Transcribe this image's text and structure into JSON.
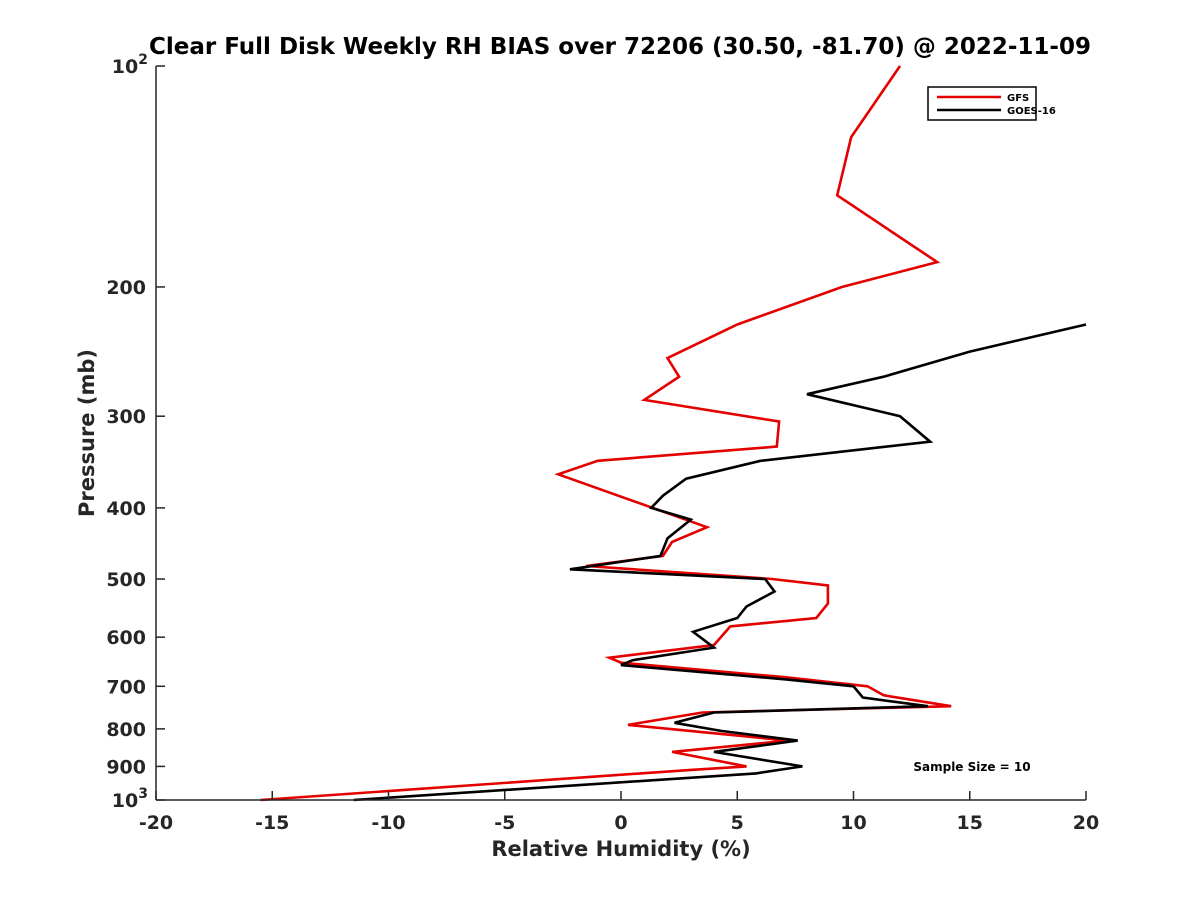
{
  "chart_data": {
    "type": "line",
    "title": "Clear Full Disk Weekly RH BIAS over 72206 (30.50, -81.70) @ 2022-11-09",
    "xlabel": "Relative Humidity (%)",
    "ylabel": "Pressure (mb)",
    "xlim": [
      -20,
      20
    ],
    "ylim": [
      100,
      1000
    ],
    "y_scale": "log",
    "y_reversed": true,
    "grid": false,
    "x_ticks": [
      -20,
      -15,
      -10,
      -5,
      0,
      5,
      10,
      15,
      20
    ],
    "y_ticks": [
      {
        "value": 100,
        "label": "10",
        "sup": "2"
      },
      {
        "value": 200,
        "label": "200",
        "sup": ""
      },
      {
        "value": 300,
        "label": "300",
        "sup": ""
      },
      {
        "value": 400,
        "label": "400",
        "sup": ""
      },
      {
        "value": 500,
        "label": "500",
        "sup": ""
      },
      {
        "value": 600,
        "label": "600",
        "sup": ""
      },
      {
        "value": 700,
        "label": "700",
        "sup": ""
      },
      {
        "value": 800,
        "label": "800",
        "sup": ""
      },
      {
        "value": 900,
        "label": "900",
        "sup": ""
      },
      {
        "value": 1000,
        "label": "10",
        "sup": "3"
      }
    ],
    "legend_position": "top-right",
    "series": [
      {
        "name": "GFS",
        "color": "#e50000",
        "points": [
          {
            "x": 12.0,
            "y": 100
          },
          {
            "x": 9.9,
            "y": 125
          },
          {
            "x": 9.3,
            "y": 150
          },
          {
            "x": 13.6,
            "y": 185
          },
          {
            "x": 9.5,
            "y": 200
          },
          {
            "x": 5.0,
            "y": 225
          },
          {
            "x": 2.0,
            "y": 250
          },
          {
            "x": 2.5,
            "y": 265
          },
          {
            "x": 1.0,
            "y": 285
          },
          {
            "x": 6.8,
            "y": 305
          },
          {
            "x": 6.7,
            "y": 330
          },
          {
            "x": -1.0,
            "y": 345
          },
          {
            "x": -2.7,
            "y": 360
          },
          {
            "x": 3.7,
            "y": 425
          },
          {
            "x": 2.2,
            "y": 445
          },
          {
            "x": 1.8,
            "y": 465
          },
          {
            "x": -1.5,
            "y": 480
          },
          {
            "x": 6.5,
            "y": 500
          },
          {
            "x": 8.9,
            "y": 510
          },
          {
            "x": 8.9,
            "y": 540
          },
          {
            "x": 8.4,
            "y": 565
          },
          {
            "x": 4.7,
            "y": 580
          },
          {
            "x": 4.0,
            "y": 615
          },
          {
            "x": -0.5,
            "y": 640
          },
          {
            "x": 0.0,
            "y": 650
          },
          {
            "x": 7.0,
            "y": 680
          },
          {
            "x": 10.6,
            "y": 700
          },
          {
            "x": 11.3,
            "y": 720
          },
          {
            "x": 14.2,
            "y": 745
          },
          {
            "x": 3.5,
            "y": 760
          },
          {
            "x": 0.3,
            "y": 790
          },
          {
            "x": 7.2,
            "y": 830
          },
          {
            "x": 2.2,
            "y": 860
          },
          {
            "x": 5.4,
            "y": 900
          },
          {
            "x": 3.0,
            "y": 910
          },
          {
            "x": -15.5,
            "y": 1000
          }
        ]
      },
      {
        "name": "GOES-16",
        "color": "#000000",
        "points": [
          {
            "x": 20.0,
            "y": 225
          },
          {
            "x": 15.0,
            "y": 245
          },
          {
            "x": 11.3,
            "y": 265
          },
          {
            "x": 8.0,
            "y": 280
          },
          {
            "x": 12.0,
            "y": 300
          },
          {
            "x": 13.3,
            "y": 325
          },
          {
            "x": 6.0,
            "y": 345
          },
          {
            "x": 2.8,
            "y": 365
          },
          {
            "x": 1.8,
            "y": 385
          },
          {
            "x": 1.3,
            "y": 400
          },
          {
            "x": 3.0,
            "y": 415
          },
          {
            "x": 2.0,
            "y": 440
          },
          {
            "x": 1.7,
            "y": 465
          },
          {
            "x": -2.2,
            "y": 485
          },
          {
            "x": 6.2,
            "y": 500
          },
          {
            "x": 6.6,
            "y": 520
          },
          {
            "x": 5.4,
            "y": 545
          },
          {
            "x": 5.0,
            "y": 565
          },
          {
            "x": 3.1,
            "y": 590
          },
          {
            "x": 4.0,
            "y": 620
          },
          {
            "x": 0.5,
            "y": 645
          },
          {
            "x": 0.0,
            "y": 655
          },
          {
            "x": 7.1,
            "y": 685
          },
          {
            "x": 10.0,
            "y": 700
          },
          {
            "x": 10.4,
            "y": 725
          },
          {
            "x": 13.2,
            "y": 745
          },
          {
            "x": 4.0,
            "y": 760
          },
          {
            "x": 2.3,
            "y": 785
          },
          {
            "x": 4.3,
            "y": 805
          },
          {
            "x": 7.6,
            "y": 830
          },
          {
            "x": 4.0,
            "y": 860
          },
          {
            "x": 7.8,
            "y": 900
          },
          {
            "x": 5.8,
            "y": 920
          },
          {
            "x": -11.5,
            "y": 1000
          }
        ]
      }
    ],
    "annotations": [
      {
        "text": "Sample Size = 10"
      }
    ]
  }
}
